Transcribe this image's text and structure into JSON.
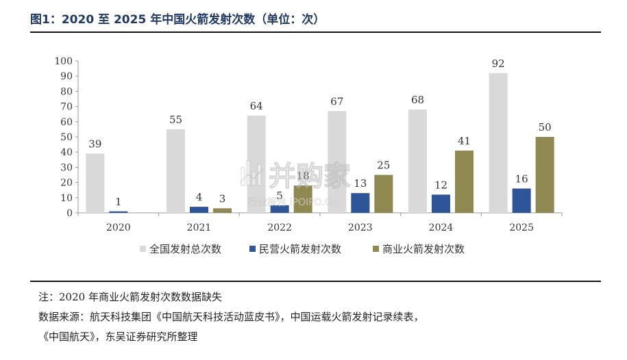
{
  "header": {
    "title": "图1：2020 至 2025 年中国火箭发射次数（单位：次）"
  },
  "watermark": {
    "brand": "并购家",
    "subtitle": "行业报告 IPOIPO.CN"
  },
  "notes": {
    "note": "注：2020 年商业火箭发射次数数据缺失",
    "source_line1": "数据来源：航天科技集团《中国航天科技活动蓝皮书》，中国运载火箭发射记录续表，",
    "source_line2": "《中国航天》，东吴证券研究所整理"
  },
  "chart_data": {
    "type": "bar",
    "title": "图1：2020 至 2025 年中国火箭发射次数（单位：次）",
    "categories": [
      "2020",
      "2021",
      "2022",
      "2023",
      "2024",
      "2025"
    ],
    "ylim": [
      0,
      100
    ],
    "yticks": [
      0,
      10,
      20,
      30,
      40,
      50,
      60,
      70,
      80,
      90,
      100
    ],
    "grid": false,
    "legend": "bottom",
    "series": [
      {
        "name": "全国发射总次数",
        "color": "#d9d9d9",
        "values": [
          39,
          55,
          64,
          67,
          68,
          92
        ]
      },
      {
        "name": "民营火箭发射次数",
        "color": "#2e5597",
        "values": [
          1,
          4,
          5,
          13,
          12,
          16
        ]
      },
      {
        "name": "商业火箭发射次数",
        "color": "#8f8850",
        "values": [
          null,
          3,
          18,
          25,
          41,
          50
        ]
      }
    ]
  }
}
